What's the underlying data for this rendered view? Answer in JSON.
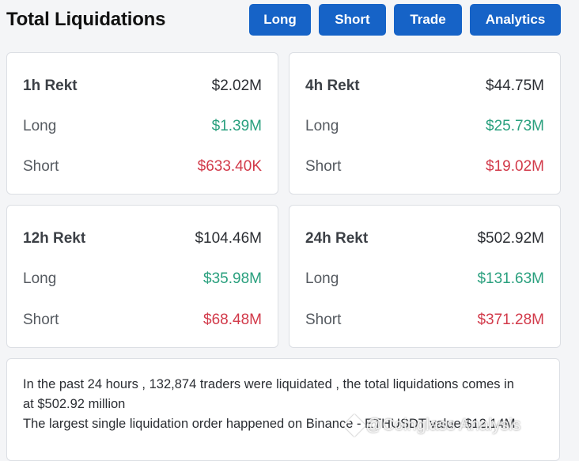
{
  "header": {
    "title": "Total Liquidations",
    "buttons": [
      "Long",
      "Short",
      "Trade",
      "Analytics"
    ],
    "accent_color": "#1663c7"
  },
  "cards": [
    {
      "period": "1h Rekt",
      "total": "$2.02M",
      "long_label": "Long",
      "long": "$1.39M",
      "short_label": "Short",
      "short": "$633.40K"
    },
    {
      "period": "4h Rekt",
      "total": "$44.75M",
      "long_label": "Long",
      "long": "$25.73M",
      "short_label": "Short",
      "short": "$19.02M"
    },
    {
      "period": "12h Rekt",
      "total": "$104.46M",
      "long_label": "Long",
      "long": "$35.98M",
      "short_label": "Short",
      "short": "$68.48M"
    },
    {
      "period": "24h Rekt",
      "total": "$502.92M",
      "long_label": "Long",
      "long": "$131.63M",
      "short_label": "Short",
      "short": "$371.28M"
    }
  ],
  "colors": {
    "long": "#2aa07e",
    "short": "#d23a4a"
  },
  "summary": {
    "line1": "In the past 24 hours , 132,874 traders were liquidated , the total liquidations comes in",
    "line2": "at $502.92 million",
    "line3": "The largest single liquidation order happened on Binance - ETHUSDT value $12.14M"
  },
  "watermark": {
    "icon": "diamond-logo-icon",
    "text": "@Coinglass Analysis"
  }
}
